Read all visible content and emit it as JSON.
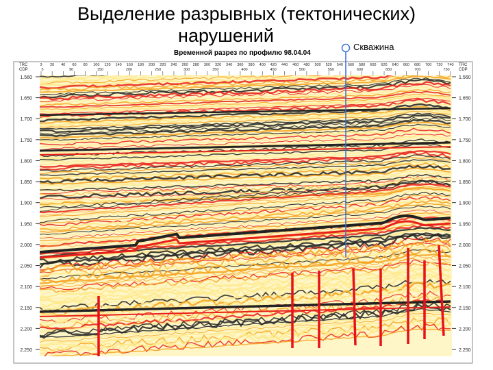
{
  "slide": {
    "title_line1": "Выделение разрывных (тектонических)",
    "title_line2": "нарушений",
    "well_label": "Скважина"
  },
  "section": {
    "subtitle": "Временной разрез по профилю 98.04.04",
    "trc_label": "TRC",
    "cdp_label": "CDP",
    "trc_ticks": [
      "3",
      "20",
      "40",
      "60",
      "80",
      "100",
      "120",
      "140",
      "160",
      "180",
      "200",
      "220",
      "240",
      "260",
      "280",
      "300",
      "320",
      "340",
      "360",
      "380",
      "400",
      "420",
      "440",
      "460",
      "480",
      "500",
      "520",
      "540",
      "560",
      "580",
      "600",
      "620",
      "640",
      "660",
      "680",
      "700",
      "720",
      "740"
    ],
    "cdp_ticks": [
      "5",
      "90",
      "150",
      "200",
      "250",
      "300",
      "350",
      "400",
      "450",
      "500",
      "550",
      "600",
      "650",
      "700",
      "750"
    ],
    "time_ticks": [
      "1.560",
      "1.650",
      "1.700",
      "1.750",
      "1.800",
      "1.850",
      "1.900",
      "1.950",
      "2.000",
      "2.050",
      "2.100",
      "2.150",
      "2.200",
      "2.250"
    ],
    "faults_count": 8
  },
  "colors": {
    "fault": "#e8101a",
    "well": "#3a6fd6",
    "trough": "#222222",
    "peak_strong": "#e8201a",
    "peak_mid": "#f5a21e",
    "peak_weak": "#ffe98a"
  }
}
